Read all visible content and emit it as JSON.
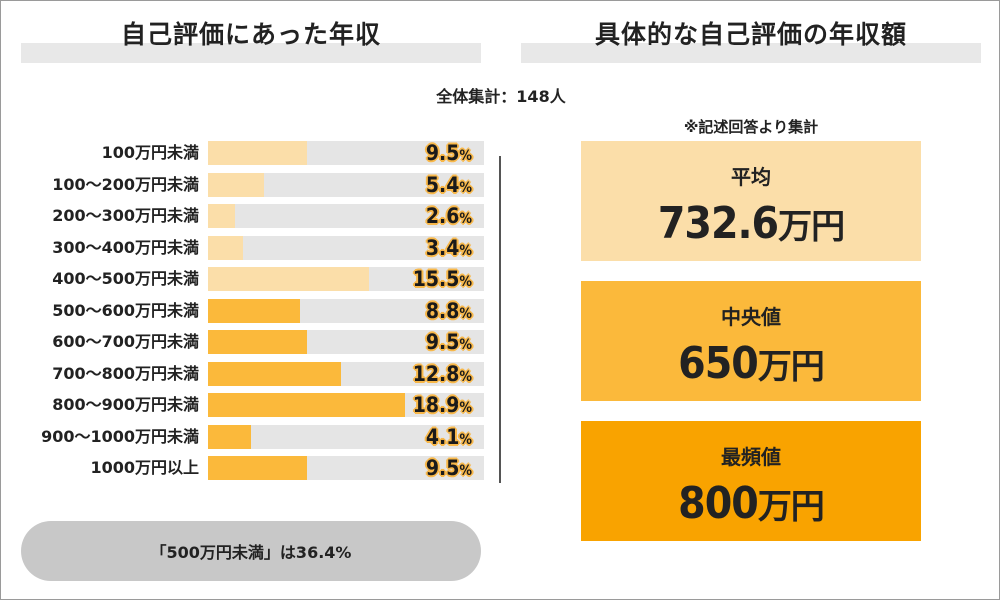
{
  "titles": {
    "left": "自己評価にあった年収",
    "right": "具体的な自己評価の年収額"
  },
  "total_label": "全体集計：148人",
  "note": "※記述回答より集計",
  "summary": "「500万円未満」は36.4%",
  "stats": {
    "mean": {
      "label": "平均",
      "value": "732.6",
      "unit": "万円"
    },
    "median": {
      "label": "中央値",
      "value": "650",
      "unit": "万円"
    },
    "mode": {
      "label": "最頻値",
      "value": "800",
      "unit": "万円"
    }
  },
  "colors": {
    "light_bar": "#fbdea9",
    "strong_bar": "#fbb93b",
    "track": "#e5e5e5",
    "median_box": "#fbb93b",
    "mode_box": "#f9a300"
  },
  "chart_data": {
    "type": "bar",
    "orientation": "horizontal",
    "title": "自己評価にあった年収",
    "categories": [
      "100万円未満",
      "100～200万円未満",
      "200～300万円未満",
      "300～400万円未満",
      "400～500万円未満",
      "500～600万円未満",
      "600～700万円未満",
      "700～800万円未満",
      "800～900万円未満",
      "900～1000万円未満",
      "1000万円以上"
    ],
    "values": [
      9.5,
      5.4,
      2.6,
      3.4,
      15.5,
      8.8,
      9.5,
      12.8,
      18.9,
      4.1,
      9.5
    ],
    "value_unit": "%",
    "xlim": [
      0,
      26.5
    ],
    "bar_colors": [
      "light",
      "light",
      "light",
      "light",
      "light",
      "strong",
      "strong",
      "strong",
      "strong",
      "strong",
      "strong"
    ]
  }
}
